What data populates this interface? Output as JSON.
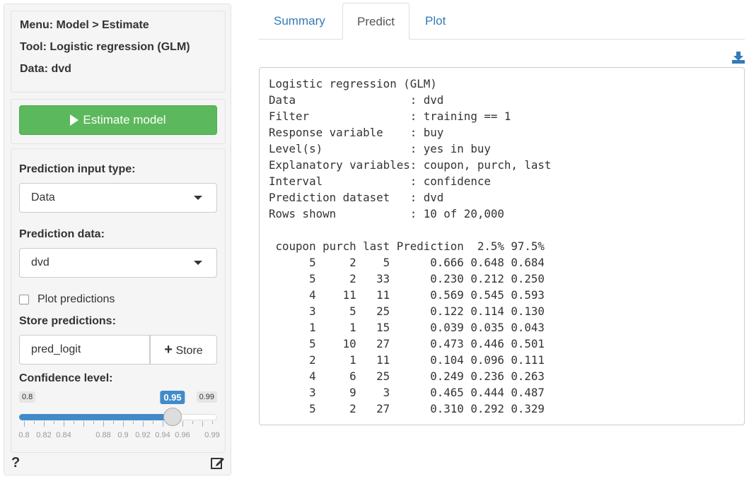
{
  "sidebar": {
    "info": [
      "Menu: Model > Estimate",
      "Tool: Logistic regression (GLM)",
      "Data: dvd"
    ],
    "estimate_label": "Estimate model",
    "pred_input_label": "Prediction input type:",
    "pred_input_value": "Data",
    "pred_data_label": "Prediction data:",
    "pred_data_value": "dvd",
    "plot_predictions_label": "Plot predictions",
    "plot_predictions_checked": false,
    "store_label": "Store predictions:",
    "store_value": "pred_logit",
    "store_button": "Store",
    "conf_label": "Confidence level:",
    "slider": {
      "min": "0.8",
      "max": "0.99",
      "value": "0.95",
      "fraction": 0.7895,
      "ticks": [
        "0.8",
        "0.82",
        "0.84",
        "0.88",
        "0.9",
        "0.92",
        "0.94",
        "0.96",
        "0.99"
      ]
    },
    "help_icon": "question-icon",
    "edit_icon": "edit-icon"
  },
  "tabs": [
    "Summary",
    "Predict",
    "Plot"
  ],
  "active_tab": "Predict",
  "output": {
    "summary_lines": [
      "Logistic regression (GLM)",
      "Data                 : dvd",
      "Filter               : training == 1",
      "Response variable    : buy",
      "Level(s)             : yes in buy",
      "Explanatory variables: coupon, purch, last",
      "Interval             : confidence",
      "Prediction dataset   : dvd",
      "Rows shown           : 10 of 20,000"
    ],
    "table_header": " coupon purch last Prediction  2.5% 97.5%",
    "table_rows": [
      "      5     2    5      0.666 0.648 0.684",
      "      5     2   33      0.230 0.212 0.250",
      "      4    11   11      0.569 0.545 0.593",
      "      3     5   25      0.122 0.114 0.130",
      "      1     1   15      0.039 0.035 0.043",
      "      5    10   27      0.473 0.446 0.501",
      "      2     1   11      0.104 0.096 0.111",
      "      4     6   25      0.249 0.236 0.263",
      "      3     9    3      0.465 0.444 0.487",
      "      5     2   27      0.310 0.292 0.329"
    ]
  },
  "colors": {
    "accent": "#337ab7",
    "success": "#5cb85c",
    "slider": "#428bca"
  }
}
